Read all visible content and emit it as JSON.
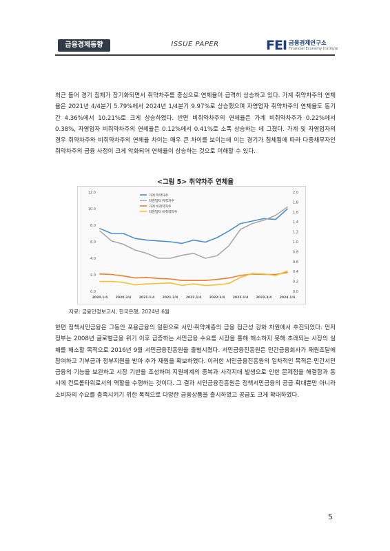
{
  "header": {
    "section_badge": "금융경제동향",
    "center_label": "ISSUE PAPER",
    "logo_mark": "FEI",
    "logo_name": "금융경제연구소",
    "logo_sub": "Financial Economy Institute"
  },
  "paragraph1": "최근 들어 경기 침체가 장기화되면서 취약차주를 중심으로 연체율이 급격히 상승하고 있다. 가계 취약차주의 연체율은 2021년 4/4분기 5.79%에서 2024년 1/4분기 9.97%로 상승했으며 자영업자 취약차주의 연체율도 동기간 4.36%에서 10.21%로 크게 상승하였다. 반면 비취약차주의 연체율은 가계 비취약차주가 0.22%에서 0.38%, 자영업자 비취약차주의 연체율은 0.12%에서 0.41%로 소폭 상승하는 데 그쳤다. 가계 및 자영업자의 경우 취약차주와 비취약차주의 연체율 차이는 매우 큰 차이를 보이는데 이는 경기가 침체됨에 따라 다중채무자인 취약차주의 금융 사정이 크게 악화되어 연체율이 상승하는 것으로 이해할 수 있다.",
  "figure": {
    "title": "<그림 5> 취약차주 연체율",
    "source": "자료: 금융안정보고서, 한국은행, 2024년 6월"
  },
  "chart_data": {
    "type": "line",
    "title": "",
    "categories": [
      "2020.1/4",
      "2020.2/4",
      "2020.3/4",
      "2020.4/4",
      "2021.1/4",
      "2021.2/4",
      "2021.3/4",
      "2021.4/4",
      "2022.1/4",
      "2022.2/4",
      "2022.3/4",
      "2022.4/4",
      "2023.1/4",
      "2023.2/4",
      "2023.3/4",
      "2023.4/4",
      "2024.1/4"
    ],
    "x_tick_labels": [
      "2020.1/4",
      "2020.3/4",
      "2021.1/4",
      "2021.3/4",
      "2022.1/4",
      "2022.3/4",
      "2023.1/4",
      "2023.3/4",
      "2024.1/4"
    ],
    "y_left": {
      "ylim": [
        0,
        12
      ],
      "ticks": [
        "0.0",
        "2.0",
        "4.0",
        "6.0",
        "8.0",
        "10.0",
        "12.0"
      ]
    },
    "y_right": {
      "ylim": [
        0,
        2.0
      ],
      "ticks": [
        "0.0",
        "0.2",
        "0.4",
        "0.6",
        "0.8",
        "1.0",
        "1.2",
        "1.4",
        "1.6",
        "1.8",
        "2.0"
      ]
    },
    "legend_position": "top-left",
    "series": [
      {
        "name": "가계 취약차주",
        "axis": "left",
        "color": "#4a8fcf",
        "values": [
          7.6,
          7.0,
          7.0,
          6.4,
          6.2,
          6.1,
          6.0,
          5.8,
          6.2,
          5.95,
          6.5,
          7.3,
          8.2,
          8.5,
          8.8,
          8.7,
          9.97
        ]
      },
      {
        "name": "자영업자 취약차주",
        "axis": "left",
        "color": "#a9a9a9",
        "values": [
          7.3,
          6.1,
          5.7,
          5.0,
          4.6,
          4.0,
          4.0,
          4.36,
          4.6,
          4.0,
          4.3,
          5.5,
          7.5,
          8.2,
          8.6,
          9.2,
          10.21
        ]
      },
      {
        "name": "가계 비취약차주",
        "axis": "right",
        "color": "#ef7d32",
        "values": [
          0.35,
          0.34,
          0.31,
          0.27,
          0.28,
          0.26,
          0.25,
          0.22,
          0.22,
          0.22,
          0.24,
          0.27,
          0.32,
          0.35,
          0.34,
          0.34,
          0.38
        ]
      },
      {
        "name": "자영업자 비취약차주",
        "axis": "right",
        "color": "#f5c02a",
        "values": [
          0.2,
          0.2,
          0.18,
          0.13,
          0.15,
          0.16,
          0.17,
          0.12,
          0.15,
          0.12,
          0.13,
          0.16,
          0.28,
          0.36,
          0.35,
          0.32,
          0.41
        ]
      }
    ]
  },
  "paragraph2": "한편 정책서민금융은 그동안 포용금융의 일환으로 서민·취약계층의 금융 접근성 강화 차원에서 추진되었다. 먼저 정부는 2008년 글로벌금융 위기 이후 급증하는 서민금융 수요를 시장을 통해 해소하지 못해 초래되는 시장의 실패를 해소할 목적으로 2016년 9월 서민금융진흥원을 출범시켰다. 서민금융진흥원은 민간금융회사가 재원조달에 참여하고 기부금과 정부지원을 받아 추가 재원을 확보하였다. 이러한 서민금융진흥원의 일차적인 목적은 민간서민금융의 기능을 보완하고 시장 기반을 조성하며 지원체계의 중복과 사각지대 발생으로 인한 문제점을 해결함과 동시에 컨트롤타워로서의 역할을 수행하는 것이다. 그 결과 서민금융진흥원은 정책서민금융의 공급 확대뿐만 아니라 소비자의 수요를 충족시키기 위한 목적으로 다양한 금융상품을 출시하였고 공급도 크게 확대하였다.",
  "page_number": "5"
}
